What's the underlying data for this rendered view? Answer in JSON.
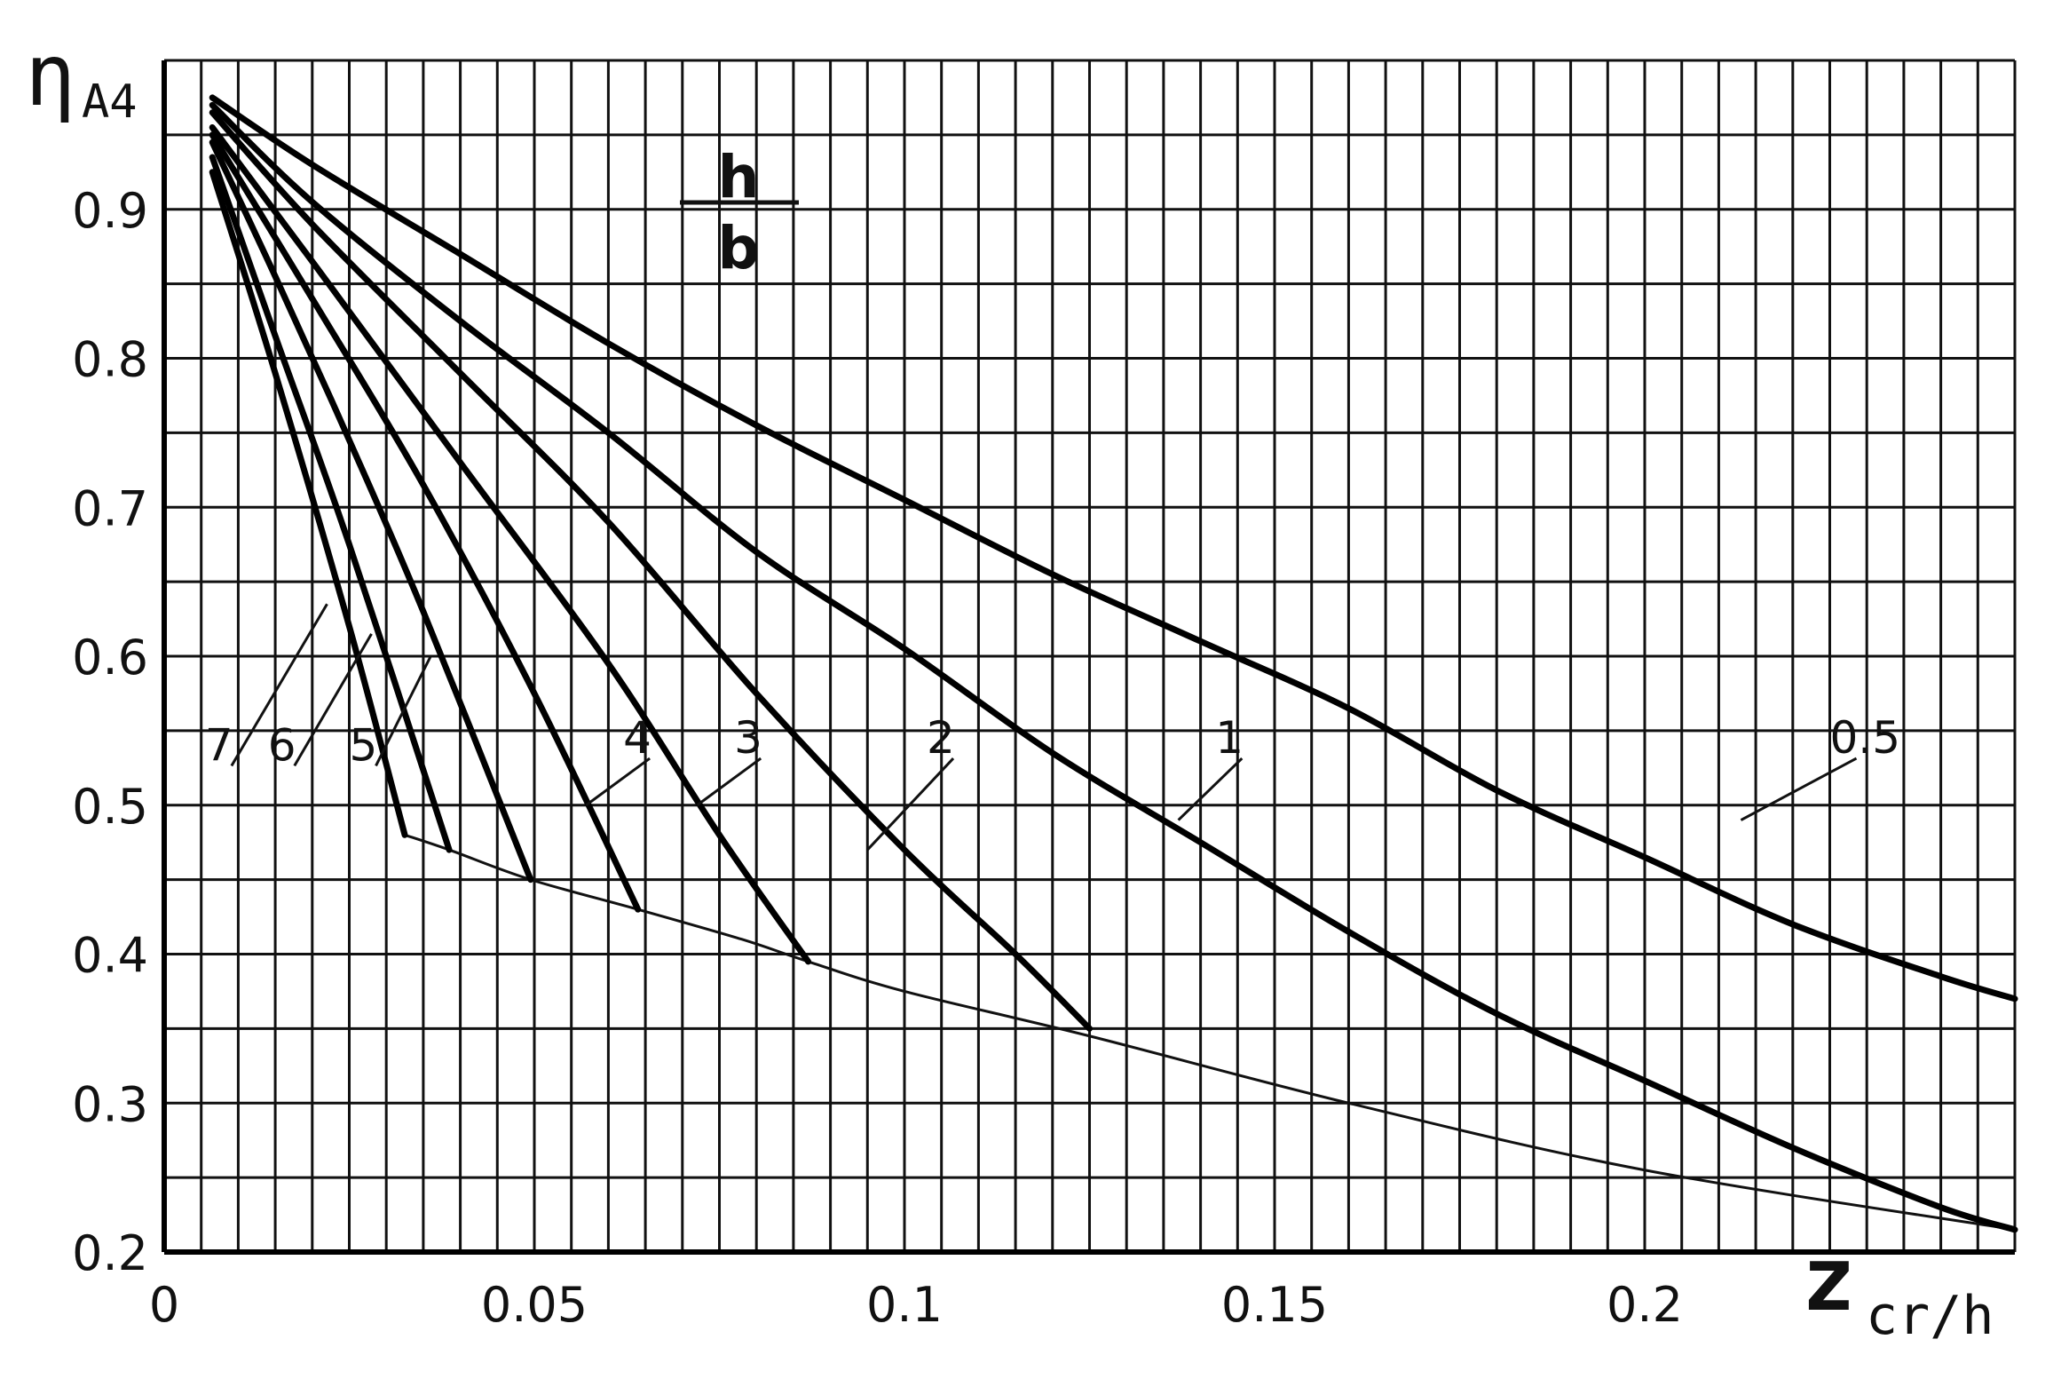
{
  "chart_data": {
    "type": "line",
    "title": "",
    "ylabel_main": "η",
    "ylabel_sub": "A4",
    "xlabel_main": "z",
    "xlabel_sub": "cr/h",
    "legend_numerator": "h",
    "legend_denominator": "b",
    "xlim": [
      0,
      0.25
    ],
    "ylim": [
      0.2,
      1.0
    ],
    "grid": true,
    "x_ticks": [
      {
        "value": 0,
        "label": "0"
      },
      {
        "value": 0.05,
        "label": "0.05"
      },
      {
        "value": 0.1,
        "label": "0.1"
      },
      {
        "value": 0.15,
        "label": "0.15"
      },
      {
        "value": 0.2,
        "label": "0.2"
      }
    ],
    "y_ticks": [
      {
        "value": 0.2,
        "label": "0.2"
      },
      {
        "value": 0.3,
        "label": "0.3"
      },
      {
        "value": 0.4,
        "label": "0.4"
      },
      {
        "value": 0.5,
        "label": "0.5"
      },
      {
        "value": 0.6,
        "label": "0.6"
      },
      {
        "value": 0.7,
        "label": "0.7"
      },
      {
        "value": 0.8,
        "label": "0.8"
      },
      {
        "value": 0.9,
        "label": "0.9"
      }
    ],
    "series": [
      {
        "name": "0.5",
        "label_at": [
          0.225,
          0.535
        ],
        "leader_to": [
          0.213,
          0.49
        ],
        "x": [
          0.0065,
          0.02,
          0.04,
          0.06,
          0.08,
          0.1,
          0.12,
          0.14,
          0.16,
          0.18,
          0.2,
          0.22,
          0.24,
          0.25
        ],
        "y": [
          0.975,
          0.93,
          0.87,
          0.81,
          0.755,
          0.705,
          0.655,
          0.61,
          0.565,
          0.51,
          0.465,
          0.42,
          0.385,
          0.37
        ]
      },
      {
        "name": "1",
        "label_at": [
          0.142,
          0.535
        ],
        "leader_to": [
          0.137,
          0.49
        ],
        "x": [
          0.0065,
          0.02,
          0.04,
          0.06,
          0.08,
          0.1,
          0.12,
          0.14,
          0.16,
          0.18,
          0.2,
          0.22,
          0.24,
          0.25
        ],
        "y": [
          0.97,
          0.905,
          0.825,
          0.75,
          0.67,
          0.605,
          0.535,
          0.475,
          0.415,
          0.36,
          0.315,
          0.27,
          0.23,
          0.215
        ]
      },
      {
        "name": "2",
        "label_at": [
          0.103,
          0.535
        ],
        "leader_to": [
          0.095,
          0.47
        ],
        "x": [
          0.0065,
          0.02,
          0.04,
          0.06,
          0.08,
          0.1,
          0.115,
          0.125
        ],
        "y": [
          0.965,
          0.89,
          0.79,
          0.69,
          0.575,
          0.47,
          0.4,
          0.35
        ]
      },
      {
        "name": "3",
        "label_at": [
          0.077,
          0.535
        ],
        "leader_to": [
          0.072,
          0.5
        ],
        "x": [
          0.0065,
          0.02,
          0.04,
          0.06,
          0.075,
          0.087
        ],
        "y": [
          0.955,
          0.865,
          0.73,
          0.595,
          0.48,
          0.395
        ]
      },
      {
        "name": "4",
        "label_at": [
          0.062,
          0.535
        ],
        "leader_to": [
          0.057,
          0.5
        ],
        "x": [
          0.0065,
          0.02,
          0.035,
          0.05,
          0.064
        ],
        "y": [
          0.95,
          0.84,
          0.715,
          0.575,
          0.43
        ]
      },
      {
        "name": "5",
        "label_at": [
          0.025,
          0.53
        ],
        "leader_to": [
          0.036,
          0.6
        ],
        "x": [
          0.0065,
          0.015,
          0.025,
          0.035,
          0.0495
        ],
        "y": [
          0.945,
          0.855,
          0.745,
          0.63,
          0.45
        ]
      },
      {
        "name": "6",
        "label_at": [
          0.014,
          0.53
        ],
        "leader_to": [
          0.028,
          0.615
        ],
        "x": [
          0.0065,
          0.015,
          0.025,
          0.0385
        ],
        "y": [
          0.935,
          0.815,
          0.675,
          0.47
        ]
      },
      {
        "name": "7",
        "label_at": [
          0.0055,
          0.53
        ],
        "leader_to": [
          0.022,
          0.635
        ],
        "x": [
          0.0065,
          0.015,
          0.025,
          0.0325
        ],
        "y": [
          0.925,
          0.79,
          0.62,
          0.48
        ]
      }
    ],
    "envelope": {
      "x": [
        0.0325,
        0.0385,
        0.0495,
        0.064,
        0.078,
        0.087,
        0.1,
        0.125,
        0.16,
        0.2,
        0.25
      ],
      "y": [
        0.48,
        0.47,
        0.45,
        0.43,
        0.41,
        0.395,
        0.375,
        0.345,
        0.3,
        0.255,
        0.215
      ]
    }
  }
}
